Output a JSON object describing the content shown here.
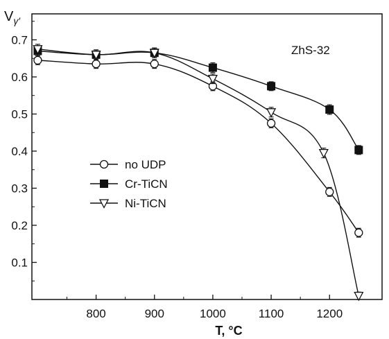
{
  "chart_data": {
    "type": "line",
    "annotation": "ZhS-32",
    "ylabel": "V",
    "ylabel_sub": "γ′",
    "xlabel": "T, °C",
    "xlim": [
      690,
      1290
    ],
    "ylim": [
      0,
      0.77
    ],
    "x_ticks": [
      800,
      900,
      1000,
      1100,
      1200
    ],
    "y_ticks": [
      0.1,
      0.2,
      0.3,
      0.4,
      0.5,
      0.6,
      0.7
    ],
    "legend_position": "left",
    "series": [
      {
        "name": "no UDP",
        "marker": "circle-open",
        "x": [
          700,
          800,
          900,
          1000,
          1100,
          1200,
          1250
        ],
        "y": [
          0.645,
          0.635,
          0.635,
          0.575,
          0.475,
          0.29,
          0.18
        ],
        "err": [
          0.012,
          0.012,
          0.012,
          0.012,
          0.012,
          0.012,
          0.012
        ]
      },
      {
        "name": "Cr-TiCN",
        "marker": "square-filled",
        "x": [
          700,
          800,
          900,
          1000,
          1100,
          1200,
          1250
        ],
        "y": [
          0.67,
          0.66,
          0.665,
          0.625,
          0.575,
          0.512,
          0.403
        ],
        "err": [
          0.013,
          0.013,
          0.013,
          0.013,
          0.012,
          0.013,
          0.012
        ]
      },
      {
        "name": "Ni-TiCN",
        "marker": "triangle-down-open",
        "x": [
          700,
          800,
          900,
          1000,
          1100,
          1190,
          1250
        ],
        "y": [
          0.675,
          0.66,
          0.665,
          0.595,
          0.505,
          0.395,
          0.01
        ],
        "err": [
          0.013,
          0.013,
          0.013,
          0.013,
          0.013,
          0.013,
          0.01
        ]
      }
    ]
  }
}
